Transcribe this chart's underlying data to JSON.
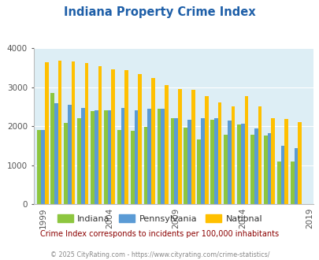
{
  "title": "Indiana Property Crime Index",
  "title_color": "#1e5fa8",
  "background_color": "#ddeef5",
  "figure_background": "#ffffff",
  "indiana": [
    1900,
    2850,
    2080,
    2200,
    2380,
    2400,
    1900,
    1880,
    1990,
    2450,
    2200,
    1960,
    1650,
    2160,
    1780,
    2040,
    1780,
    1750,
    1090,
    1090
  ],
  "pennsylvania": [
    1900,
    2590,
    2540,
    2470,
    2400,
    2410,
    2460,
    2400,
    2450,
    2450,
    2210,
    2170,
    2210,
    2210,
    2140,
    2060,
    1950,
    1820,
    1500,
    1430
  ],
  "national": [
    3630,
    3670,
    3650,
    3610,
    3530,
    3460,
    3430,
    3330,
    3230,
    3050,
    2960,
    2930,
    2770,
    2610,
    2510,
    2760,
    2510,
    2200,
    2180,
    2110
  ],
  "years": [
    1999,
    2000,
    2001,
    2002,
    2003,
    2004,
    2005,
    2006,
    2007,
    2008,
    2009,
    2010,
    2011,
    2012,
    2013,
    2014,
    2015,
    2016,
    2017,
    2018
  ],
  "indiana_color": "#8dc63f",
  "pennsylvania_color": "#5b9bd5",
  "national_color": "#ffc000",
  "tick_color": "#555555",
  "legend_text_color": "#333333",
  "subtitle": "Crime Index corresponds to incidents per 100,000 inhabitants",
  "subtitle_color": "#8b0000",
  "copyright": "© 2025 CityRating.com - https://www.cityrating.com/crime-statistics/",
  "copyright_color": "#888888",
  "ylim": [
    0,
    4000
  ],
  "yticks": [
    0,
    1000,
    2000,
    3000,
    4000
  ],
  "xtick_labels": [
    "1999",
    "2004",
    "2009",
    "2014",
    "2019"
  ],
  "xtick_positions": [
    1999,
    2004,
    2009,
    2014,
    2019
  ],
  "bar_width": 0.28,
  "xlim_min": 1998.3,
  "xlim_max": 2019.3
}
